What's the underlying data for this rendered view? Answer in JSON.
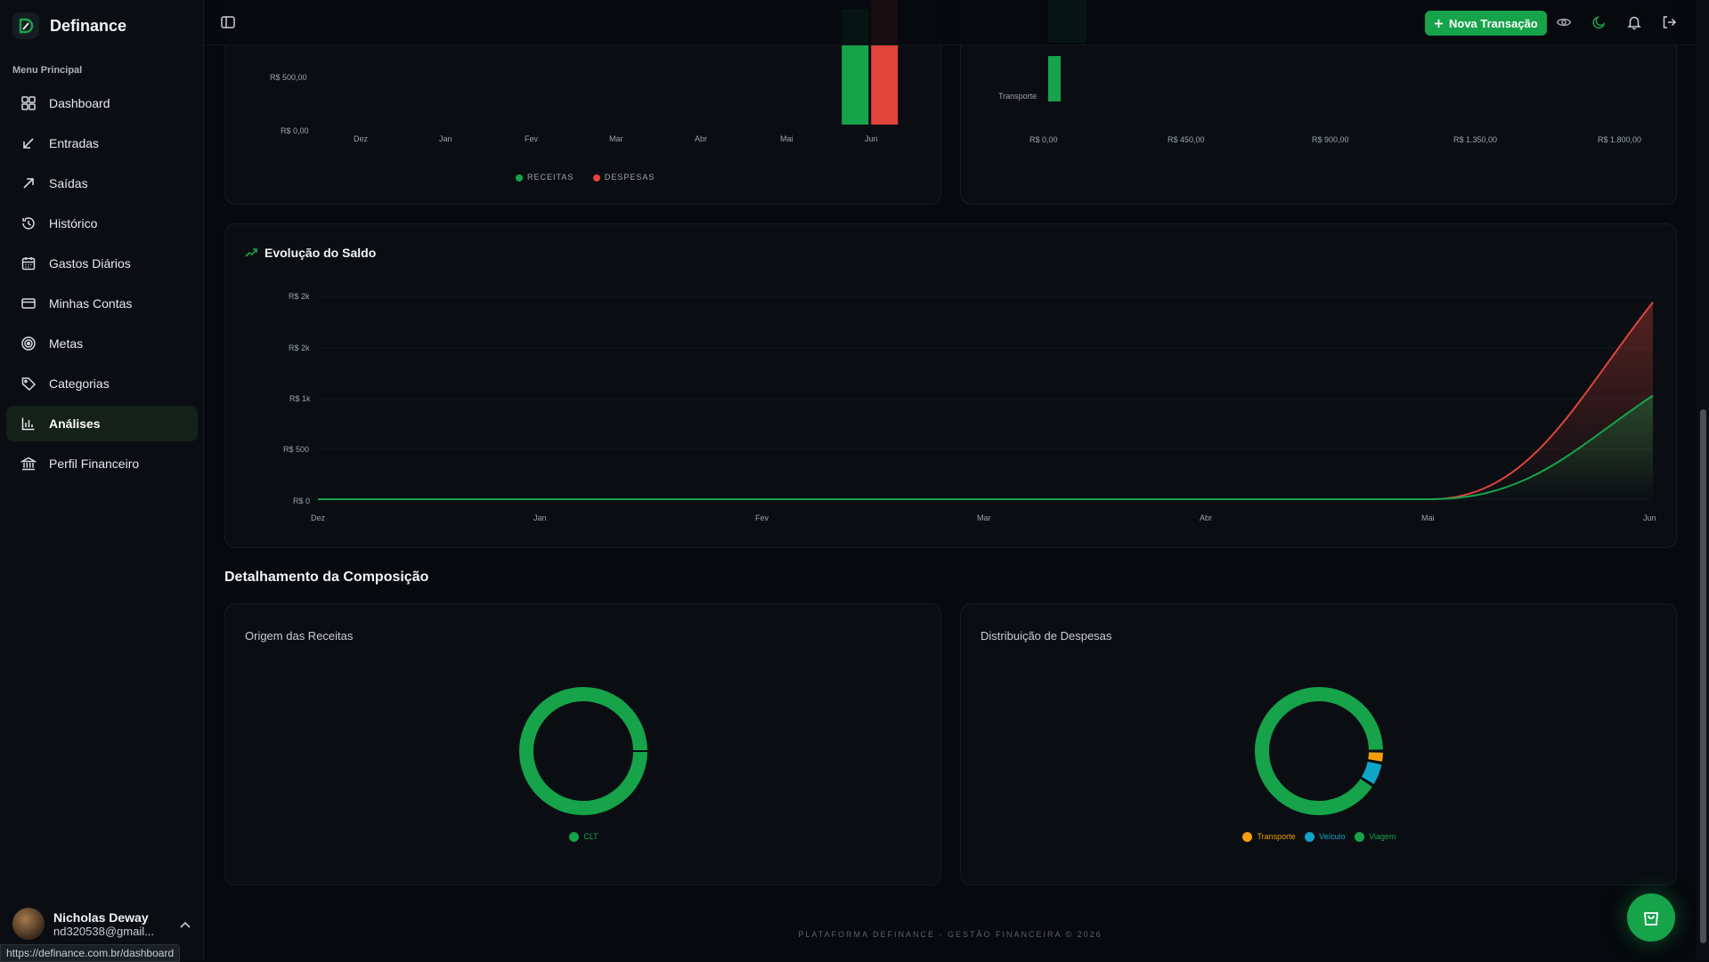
{
  "app": {
    "name": "Definance"
  },
  "sidebar": {
    "section_label": "Menu Principal",
    "items": [
      {
        "label": "Dashboard",
        "icon": "dashboard-icon"
      },
      {
        "label": "Entradas",
        "icon": "arrow-down-left-icon"
      },
      {
        "label": "Saídas",
        "icon": "arrow-up-right-icon"
      },
      {
        "label": "Histórico",
        "icon": "history-icon"
      },
      {
        "label": "Gastos Diários",
        "icon": "calendar-icon"
      },
      {
        "label": "Minhas Contas",
        "icon": "credit-card-icon"
      },
      {
        "label": "Metas",
        "icon": "target-icon"
      },
      {
        "label": "Categorias",
        "icon": "tag-icon"
      },
      {
        "label": "Análises",
        "icon": "bar-chart-icon",
        "active": true
      },
      {
        "label": "Perfil Financeiro",
        "icon": "bank-icon"
      }
    ],
    "user": {
      "name": "Nicholas Deway",
      "email": "nd320538@gmail..."
    }
  },
  "status_bar": {
    "url": "https://definance.com.br/dashboard"
  },
  "topbar": {
    "new_transaction": "Nova Transação"
  },
  "colors": {
    "green": "#16a34a",
    "red": "#e0443a",
    "orange": "#f59e0b",
    "teal": "#0ea5c6"
  },
  "charts": {
    "monthly": {
      "y_ticks": [
        "R$ 500,00",
        "R$ 0,00"
      ],
      "x_ticks": [
        "Dez",
        "Jan",
        "Fev",
        "Mar",
        "Abr",
        "Mai",
        "Jun"
      ],
      "legend": [
        "RECEITAS",
        "DESPESAS"
      ]
    },
    "category": {
      "category_label": "Transporte",
      "x_ticks": [
        "R$ 0,00",
        "R$ 450,00",
        "R$ 900,00",
        "R$ 1.350,00",
        "R$ 1.800,00"
      ]
    },
    "balance": {
      "title": "Evolução do Saldo",
      "y_ticks": [
        "R$ 2k",
        "R$ 2k",
        "R$ 1k",
        "R$ 500",
        "R$ 0"
      ],
      "x_ticks": [
        "Dez",
        "Jan",
        "Fev",
        "Mar",
        "Abr",
        "Mai",
        "Jun"
      ]
    },
    "composition": {
      "title": "Detalhamento da Composição",
      "income": {
        "title": "Origem das Receitas",
        "legend": [
          "CLT"
        ]
      },
      "expenses": {
        "title": "Distribuição de Despesas",
        "legend": [
          "Transporte",
          "Veículo",
          "Viagem"
        ]
      }
    }
  },
  "chart_data": [
    {
      "type": "bar",
      "categories": [
        "Dez",
        "Jan",
        "Fev",
        "Mar",
        "Abr",
        "Mai",
        "Jun"
      ],
      "series": [
        {
          "name": "RECEITAS",
          "values": [
            0,
            0,
            0,
            0,
            0,
            0,
            1300
          ]
        },
        {
          "name": "DESPESAS",
          "values": [
            0,
            0,
            0,
            0,
            0,
            0,
            1600
          ]
        }
      ],
      "ylabel": "",
      "legend": "bottom"
    },
    {
      "type": "bar",
      "orientation": "horizontal",
      "categories": [
        "Transporte"
      ],
      "values": [
        45
      ],
      "xlim": [
        0,
        1800
      ]
    },
    {
      "type": "area",
      "x": [
        "Dez",
        "Jan",
        "Fev",
        "Mar",
        "Abr",
        "Mai",
        "Jun"
      ],
      "series": [
        {
          "values": [
            0,
            0,
            0,
            0,
            0,
            0,
            1900
          ],
          "color": "#e0443a"
        },
        {
          "values": [
            0,
            0,
            0,
            0,
            0,
            0,
            1000
          ],
          "color": "#16a34a"
        }
      ]
    },
    {
      "type": "pie",
      "title": "Origem das Receitas",
      "categories": [
        "CLT"
      ],
      "values": [
        100
      ]
    },
    {
      "type": "pie",
      "title": "Distribuição de Despesas",
      "categories": [
        "Transporte",
        "Veículo",
        "Viagem"
      ],
      "values": [
        3,
        6,
        91
      ]
    }
  ],
  "footer": {
    "text": "PLATAFORMA DEFINANCE - GESTÃO FINANCEIRA © 2026"
  }
}
